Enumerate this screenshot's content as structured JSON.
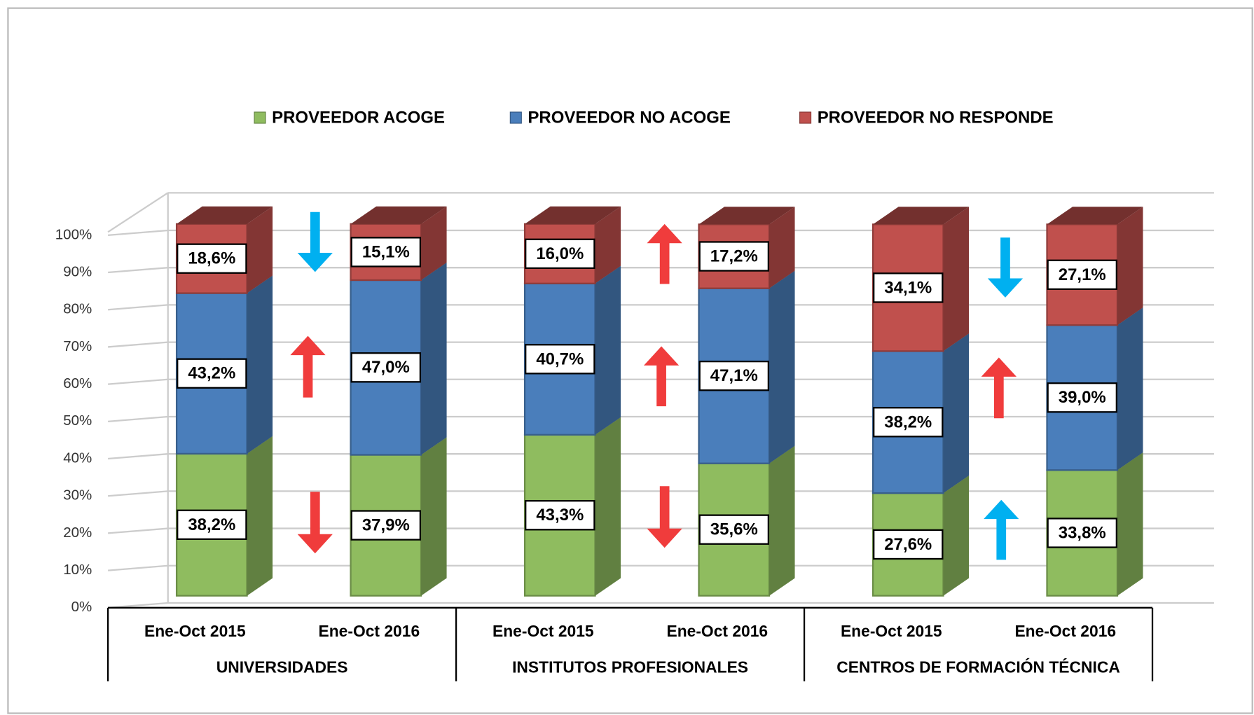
{
  "chart_data": {
    "type": "stacked_bar_3d",
    "categories": [
      "Ene-Oct 2015",
      "Ene-Oct 2016",
      "Ene-Oct 2015",
      "Ene-Oct 2016",
      "Ene-Oct 2015",
      "Ene-Oct 2016"
    ],
    "groups": [
      "UNIVERSIDADES",
      "INSTITUTOS PROFESIONALES",
      "CENTROS DE FORMACIÓN TÉCNICA"
    ],
    "series": [
      {
        "name": "PROVEEDOR ACOGE",
        "color": "#8fbc5f",
        "values": [
          38.2,
          37.9,
          43.3,
          35.6,
          27.6,
          33.8
        ],
        "value_labels": [
          "38,2%",
          "37,9%",
          "43,3%",
          "35,6%",
          "27,6%",
          "33,8%"
        ]
      },
      {
        "name": "PROVEEDOR NO ACOGE",
        "color": "#4a7ebb",
        "values": [
          43.2,
          47.0,
          40.7,
          47.1,
          38.2,
          39.0
        ],
        "value_labels": [
          "43,2%",
          "47,0%",
          "40,7%",
          "47,1%",
          "38,2%",
          "39,0%"
        ]
      },
      {
        "name": "PROVEEDOR NO RESPONDE",
        "color": "#c0504d",
        "values": [
          18.6,
          15.1,
          16.0,
          17.2,
          34.1,
          27.1
        ],
        "value_labels": [
          "18,6%",
          "15,1%",
          "16,0%",
          "17,2%",
          "34,1%",
          "27,1%"
        ]
      }
    ],
    "ylim": [
      0,
      100
    ],
    "yticks": [
      {
        "value": 0,
        "label": "0%"
      },
      {
        "value": 10,
        "label": "10%"
      },
      {
        "value": 20,
        "label": "20%"
      },
      {
        "value": 30,
        "label": "30%"
      },
      {
        "value": 40,
        "label": "40%"
      },
      {
        "value": 50,
        "label": "50%"
      },
      {
        "value": 60,
        "label": "60%"
      },
      {
        "value": 70,
        "label": "70%"
      },
      {
        "value": 80,
        "label": "80%"
      },
      {
        "value": 90,
        "label": "90%"
      },
      {
        "value": 100,
        "label": "100%"
      }
    ],
    "grid": true,
    "legend": "top"
  }
}
